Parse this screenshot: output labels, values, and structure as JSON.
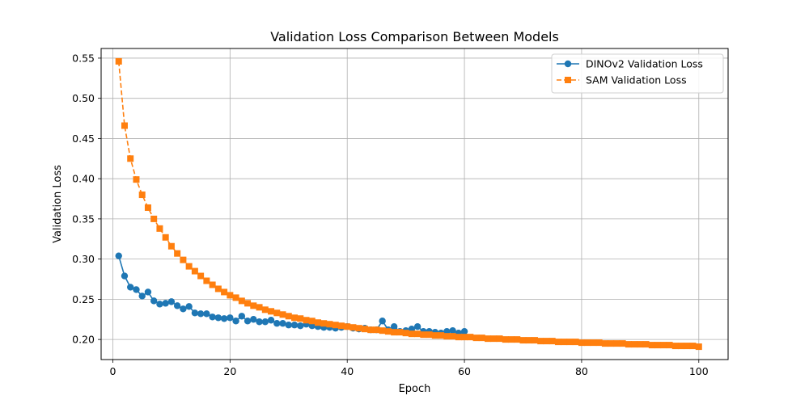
{
  "chart_data": {
    "type": "line",
    "title": "Validation Loss Comparison Between Models",
    "xlabel": "Epoch",
    "ylabel": "Validation Loss",
    "xlim": [
      -2,
      105
    ],
    "ylim": [
      0.175,
      0.562
    ],
    "xticks": [
      0,
      20,
      40,
      60,
      80,
      100
    ],
    "yticks": [
      0.2,
      0.25,
      0.3,
      0.35,
      0.4,
      0.45,
      0.5,
      0.55
    ],
    "grid": true,
    "legend_position": "top-right",
    "series": [
      {
        "name": "DINOv2 Validation Loss",
        "color": "#1f77b4",
        "marker": "circle",
        "line_style": "solid",
        "x": [
          1,
          2,
          3,
          4,
          5,
          6,
          7,
          8,
          9,
          10,
          11,
          12,
          13,
          14,
          15,
          16,
          17,
          18,
          19,
          20,
          21,
          22,
          23,
          24,
          25,
          26,
          27,
          28,
          29,
          30,
          31,
          32,
          33,
          34,
          35,
          36,
          37,
          38,
          39,
          40,
          41,
          42,
          43,
          44,
          45,
          46,
          47,
          48,
          49,
          50,
          51,
          52,
          53,
          54,
          55,
          56,
          57,
          58,
          59,
          60
        ],
        "values": [
          0.304,
          0.279,
          0.265,
          0.262,
          0.254,
          0.259,
          0.248,
          0.244,
          0.245,
          0.247,
          0.242,
          0.238,
          0.241,
          0.233,
          0.232,
          0.232,
          0.228,
          0.227,
          0.226,
          0.227,
          0.223,
          0.229,
          0.223,
          0.225,
          0.222,
          0.222,
          0.224,
          0.22,
          0.22,
          0.218,
          0.218,
          0.217,
          0.219,
          0.217,
          0.216,
          0.215,
          0.215,
          0.214,
          0.215,
          0.216,
          0.214,
          0.213,
          0.214,
          0.212,
          0.212,
          0.223,
          0.212,
          0.216,
          0.21,
          0.211,
          0.213,
          0.216,
          0.21,
          0.21,
          0.209,
          0.208,
          0.21,
          0.211,
          0.208,
          0.21
        ]
      },
      {
        "name": "SAM Validation Loss",
        "color": "#ff7f0e",
        "marker": "square",
        "line_style": "dashed",
        "x": [
          1,
          2,
          3,
          4,
          5,
          6,
          7,
          8,
          9,
          10,
          11,
          12,
          13,
          14,
          15,
          16,
          17,
          18,
          19,
          20,
          21,
          22,
          23,
          24,
          25,
          26,
          27,
          28,
          29,
          30,
          31,
          32,
          33,
          34,
          35,
          36,
          37,
          38,
          39,
          40,
          41,
          42,
          43,
          44,
          45,
          46,
          47,
          48,
          49,
          50,
          51,
          52,
          53,
          54,
          55,
          56,
          57,
          58,
          59,
          60,
          61,
          62,
          63,
          64,
          65,
          66,
          67,
          68,
          69,
          70,
          71,
          72,
          73,
          74,
          75,
          76,
          77,
          78,
          79,
          80,
          81,
          82,
          83,
          84,
          85,
          86,
          87,
          88,
          89,
          90,
          91,
          92,
          93,
          94,
          95,
          96,
          97,
          98,
          99,
          100
        ],
        "values": [
          0.546,
          0.466,
          0.425,
          0.399,
          0.38,
          0.364,
          0.35,
          0.338,
          0.327,
          0.316,
          0.307,
          0.299,
          0.291,
          0.285,
          0.279,
          0.273,
          0.268,
          0.263,
          0.259,
          0.255,
          0.252,
          0.248,
          0.245,
          0.242,
          0.24,
          0.237,
          0.235,
          0.233,
          0.231,
          0.229,
          0.227,
          0.226,
          0.224,
          0.223,
          0.221,
          0.22,
          0.219,
          0.218,
          0.217,
          0.216,
          0.215,
          0.214,
          0.213,
          0.212,
          0.212,
          0.211,
          0.21,
          0.209,
          0.209,
          0.208,
          0.207,
          0.207,
          0.206,
          0.206,
          0.205,
          0.205,
          0.204,
          0.204,
          0.203,
          0.203,
          0.203,
          0.202,
          0.202,
          0.201,
          0.201,
          0.201,
          0.2,
          0.2,
          0.2,
          0.199,
          0.199,
          0.199,
          0.198,
          0.198,
          0.198,
          0.197,
          0.197,
          0.197,
          0.197,
          0.196,
          0.196,
          0.196,
          0.196,
          0.195,
          0.195,
          0.195,
          0.195,
          0.194,
          0.194,
          0.194,
          0.194,
          0.193,
          0.193,
          0.193,
          0.193,
          0.192,
          0.192,
          0.192,
          0.192,
          0.191
        ]
      }
    ]
  }
}
